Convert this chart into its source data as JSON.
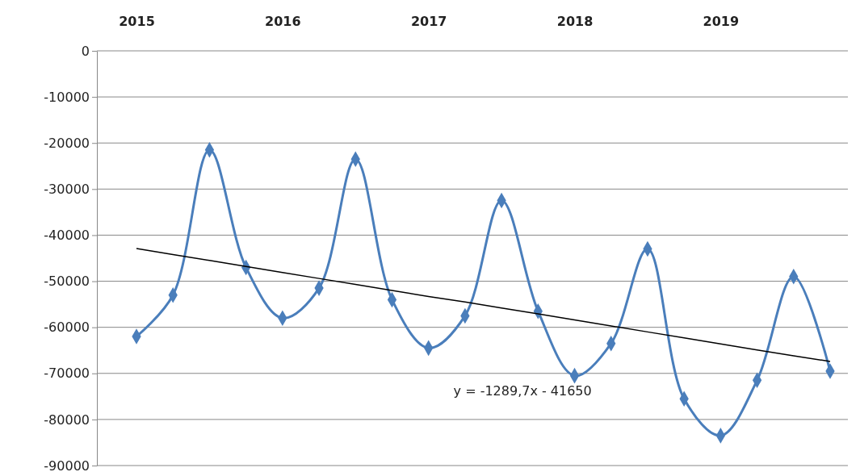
{
  "chart_data": {
    "type": "line",
    "categories": [
      "2015",
      null,
      null,
      null,
      "2016",
      null,
      null,
      null,
      "2017",
      null,
      null,
      null,
      "2018",
      null,
      null,
      null,
      "2019",
      null,
      null,
      null
    ],
    "series": [
      {
        "color": "#4a7ebb",
        "marker": "diamond",
        "values": [
          -62000,
          -53000,
          -21500,
          -47000,
          -58000,
          -51500,
          -23500,
          -54000,
          -64500,
          -57500,
          -32500,
          -56500,
          -70500,
          -63500,
          -43000,
          -75500,
          -83500,
          -71500,
          -49000,
          -69500
        ]
      },
      {
        "color": "#000000",
        "marker": "none",
        "values": [
          -42900,
          -44200,
          -45500,
          -46800,
          -48100,
          -49400,
          -50700,
          -52000,
          -53300,
          -54500,
          -55800,
          -57100,
          -58400,
          -59700,
          -61000,
          -62300,
          -63600,
          -64900,
          -66200,
          -67400
        ]
      }
    ],
    "ylim": [
      -90000,
      0
    ],
    "yticks": [
      0,
      -10000,
      -20000,
      -30000,
      -40000,
      -50000,
      -60000,
      -70000,
      -80000,
      -90000
    ],
    "grid": "y",
    "annotations": [
      "y = -1289,7x - 41650"
    ]
  }
}
